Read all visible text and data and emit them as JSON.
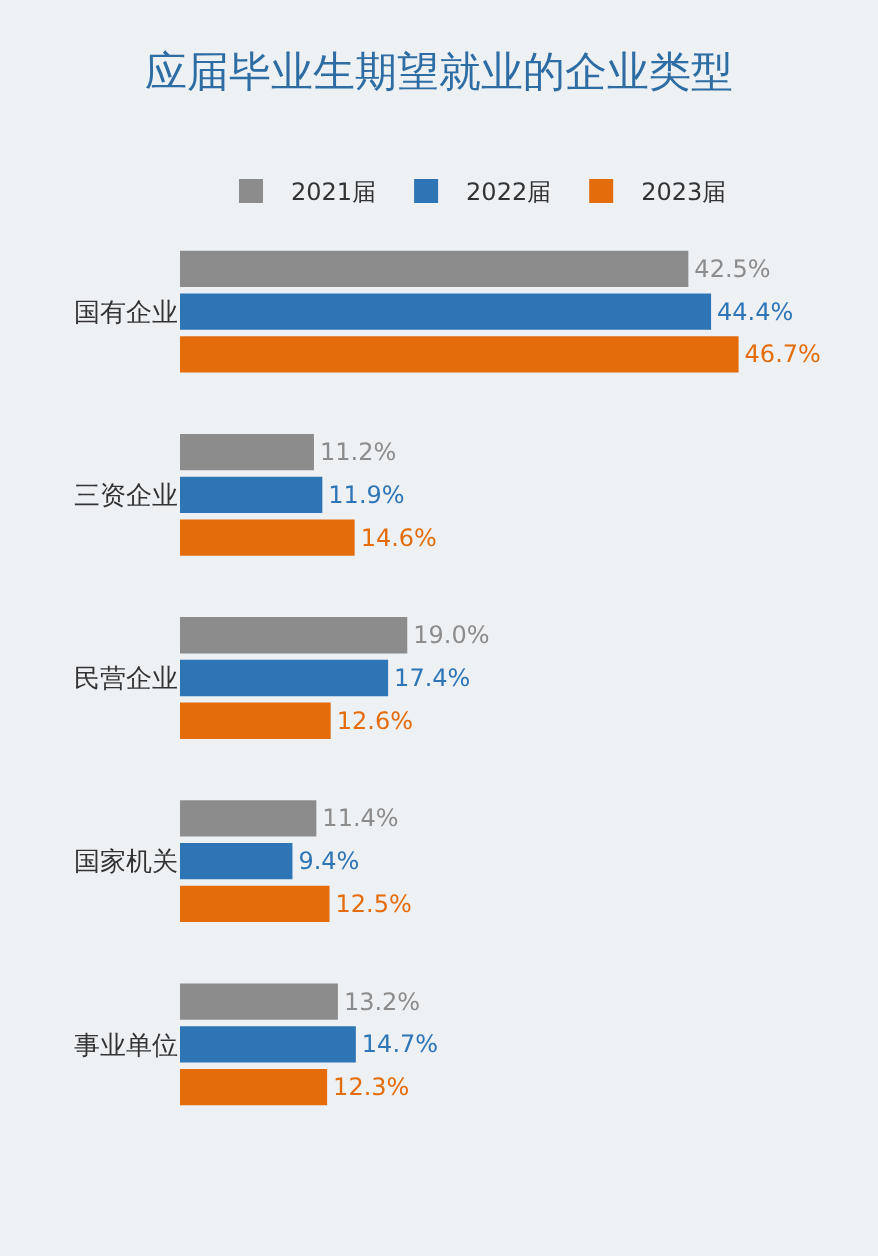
{
  "chart_data": {
    "type": "bar",
    "orientation": "horizontal",
    "title": "应届毕业生期望就业的企业类型",
    "categories": [
      "国有企业",
      "三资企业",
      "民营企业",
      "国家机关",
      "事业单位"
    ],
    "series": [
      {
        "name": "2021届",
        "color": "#8c8c8c",
        "values": [
          42.5,
          11.2,
          19.0,
          11.4,
          13.2
        ],
        "value_labels": [
          "42.5%",
          "11.2%",
          "19.0%",
          "11.4%",
          "13.2%"
        ]
      },
      {
        "name": "2022届",
        "color": "#2e75b6",
        "values": [
          44.4,
          11.9,
          17.4,
          9.4,
          14.7
        ],
        "value_labels": [
          "44.4%",
          "11.9%",
          "17.4%",
          "9.4%",
          "14.7%"
        ]
      },
      {
        "name": "2023届",
        "color": "#e46c0a",
        "values": [
          46.7,
          14.6,
          12.6,
          12.5,
          12.3
        ],
        "value_labels": [
          "46.7%",
          "14.6%",
          "12.6%",
          "12.5%",
          "12.3%"
        ]
      }
    ],
    "legend": "top",
    "grid": false
  }
}
